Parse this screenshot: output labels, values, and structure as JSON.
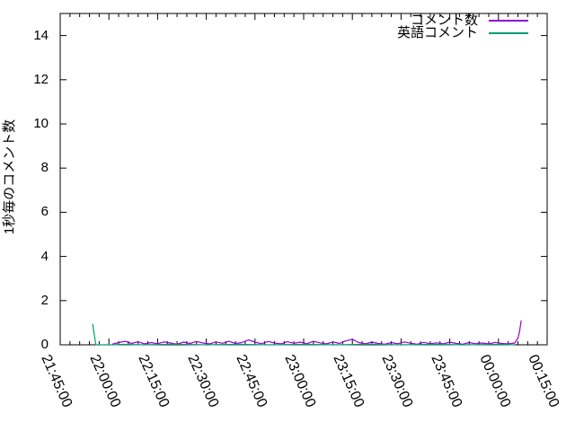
{
  "figure": {
    "background": "#ffffff",
    "axis_color": "#000000",
    "text_color": "#000000"
  },
  "chart_data": {
    "type": "line",
    "title": "",
    "xlabel": "",
    "ylabel": "1秒毎のコメント数",
    "ylim": [
      0,
      15
    ],
    "grid": false,
    "legend_position": "top-right-inside",
    "y_tick_values": [
      0,
      2,
      4,
      6,
      8,
      10,
      12,
      14
    ],
    "y_tick_labels": [
      "0",
      "2",
      "4",
      "6",
      "8",
      "10",
      "12",
      "14"
    ],
    "x_tick_labels": [
      "21:45:00",
      "22:00:00",
      "22:15:00",
      "22:30:00",
      "22:45:00",
      "23:00:00",
      "23:15:00",
      "23:30:00",
      "23:45:00",
      "00:00:00",
      "00:15:00"
    ],
    "x_minor_tick_minutes": 3,
    "series": [
      {
        "name": "コメント数",
        "color": "#9400d3",
        "points": [
          [
            "22:01:00",
            0.03
          ],
          [
            "22:03:00",
            0.1
          ],
          [
            "22:05:00",
            0.16
          ],
          [
            "22:07:00",
            0.06
          ],
          [
            "22:09:00",
            0.14
          ],
          [
            "22:11:00",
            0.04
          ],
          [
            "22:13:00",
            0.1
          ],
          [
            "22:15:00",
            0.05
          ],
          [
            "22:17:00",
            0.13
          ],
          [
            "22:19:00",
            0.08
          ],
          [
            "22:21:00",
            0.03
          ],
          [
            "22:23:00",
            0.12
          ],
          [
            "22:25:00",
            0.06
          ],
          [
            "22:27:00",
            0.15
          ],
          [
            "22:29:00",
            0.08
          ],
          [
            "22:31:00",
            0.04
          ],
          [
            "22:33:00",
            0.13
          ],
          [
            "22:35:00",
            0.07
          ],
          [
            "22:37:00",
            0.16
          ],
          [
            "22:39:00",
            0.06
          ],
          [
            "22:41:00",
            0.1
          ],
          [
            "22:43:00",
            0.22
          ],
          [
            "22:45:00",
            0.12
          ],
          [
            "22:47:00",
            0.05
          ],
          [
            "22:49:00",
            0.15
          ],
          [
            "22:51:00",
            0.08
          ],
          [
            "22:53:00",
            0.04
          ],
          [
            "22:55:00",
            0.14
          ],
          [
            "22:57:00",
            0.07
          ],
          [
            "22:59:00",
            0.12
          ],
          [
            "23:01:00",
            0.05
          ],
          [
            "23:03:00",
            0.16
          ],
          [
            "23:05:00",
            0.09
          ],
          [
            "23:07:00",
            0.04
          ],
          [
            "23:09:00",
            0.13
          ],
          [
            "23:11:00",
            0.06
          ],
          [
            "23:13:00",
            0.18
          ],
          [
            "23:15:00",
            0.25
          ],
          [
            "23:17:00",
            0.1
          ],
          [
            "23:19:00",
            0.05
          ],
          [
            "23:21:00",
            0.12
          ],
          [
            "23:23:00",
            0.06
          ],
          [
            "23:25:00",
            0.03
          ],
          [
            "23:27:00",
            0.1
          ],
          [
            "23:29:00",
            0.05
          ],
          [
            "23:31:00",
            0.13
          ],
          [
            "23:33:00",
            0.07
          ],
          [
            "23:35:00",
            0.03
          ],
          [
            "23:37:00",
            0.11
          ],
          [
            "23:39:00",
            0.05
          ],
          [
            "23:41:00",
            0.09
          ],
          [
            "23:43:00",
            0.04
          ],
          [
            "23:45:00",
            0.12
          ],
          [
            "23:47:00",
            0.06
          ],
          [
            "23:49:00",
            0.03
          ],
          [
            "23:51:00",
            0.1
          ],
          [
            "23:53:00",
            0.05
          ],
          [
            "23:55:00",
            0.08
          ],
          [
            "23:57:00",
            0.04
          ],
          [
            "23:59:00",
            0.11
          ],
          [
            "00:01:00",
            0.06
          ],
          [
            "00:03:00",
            0.04
          ],
          [
            "00:05:00",
            0.08
          ],
          [
            "00:06:00",
            0.3
          ],
          [
            "00:06:30",
            0.6
          ],
          [
            "00:07:00",
            1.1
          ]
        ]
      },
      {
        "name": "英語コメント",
        "color": "#009e73",
        "points": [
          [
            "21:55:00",
            0.95
          ],
          [
            "21:56:00",
            0.0
          ],
          [
            "22:00:00",
            0.0
          ],
          [
            "22:05:00",
            0.02
          ],
          [
            "22:10:00",
            0.0
          ],
          [
            "22:20:00",
            0.03
          ],
          [
            "22:30:00",
            0.0
          ],
          [
            "22:40:00",
            0.02
          ],
          [
            "22:50:00",
            0.0
          ],
          [
            "23:00:00",
            0.02
          ],
          [
            "23:10:00",
            0.0
          ],
          [
            "23:20:00",
            0.03
          ],
          [
            "23:30:00",
            0.0
          ],
          [
            "23:40:00",
            0.02
          ],
          [
            "23:50:00",
            0.0
          ],
          [
            "00:00:00",
            0.02
          ],
          [
            "00:05:00",
            0.0
          ]
        ]
      }
    ]
  }
}
